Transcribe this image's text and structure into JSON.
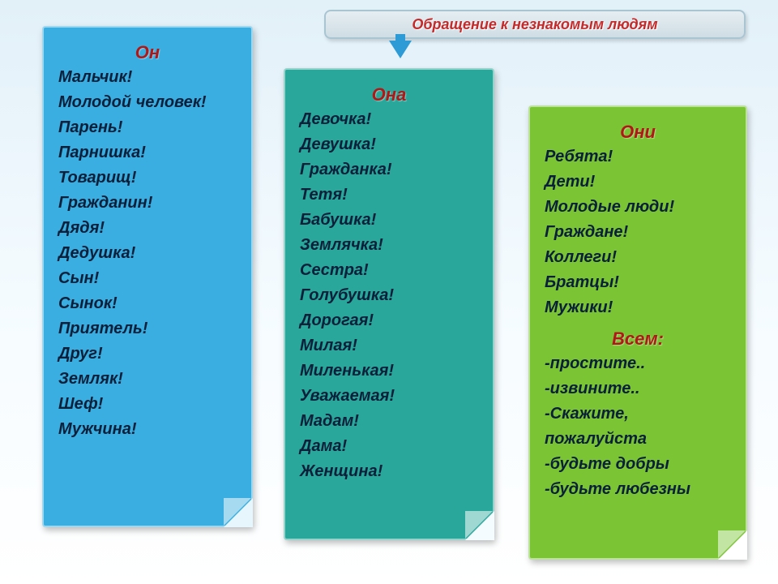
{
  "header": "Обращение к незнакомым людям",
  "card1": {
    "title": "Он",
    "items": [
      "Мальчик!",
      "Молодой человек!",
      "Парень!",
      "Парнишка!",
      "Товарищ!",
      "Гражданин!",
      "Дядя!",
      "Дедушка!",
      "Сын!",
      "Сынок!",
      "Приятель!",
      "Друг!",
      "Земляк!",
      "Шеф!",
      "Мужчина!"
    ]
  },
  "card2": {
    "title": "Она",
    "items": [
      "Девочка!",
      "Девушка!",
      "Гражданка!",
      "Тетя!",
      "Бабушка!",
      "Землячка!",
      "Сестра!",
      "Голубушка!",
      "Дорогая!",
      "Милая!",
      "Миленькая!",
      "Уважаемая!",
      "Мадам!",
      "Дама!",
      "Женщина!"
    ]
  },
  "card3": {
    "title": "Они",
    "items": [
      "Ребята!",
      "Дети!",
      "Молодые люди!",
      "Граждане!",
      "Коллеги!",
      "Братцы!",
      "Мужики!"
    ],
    "subtitle": "Всем:",
    "items2": [
      "-простите..",
      "-извините..",
      "-Скажите, пожалуйста",
      "-будьте добры",
      "-будьте любезны"
    ]
  },
  "colors": {
    "card1_bg": "#3aaee0",
    "card2_bg": "#2aa79b",
    "card3_bg": "#7bc534",
    "title_color": "#b01818",
    "item_color": "#0a1f3a",
    "header_text": "#c42a2a"
  }
}
